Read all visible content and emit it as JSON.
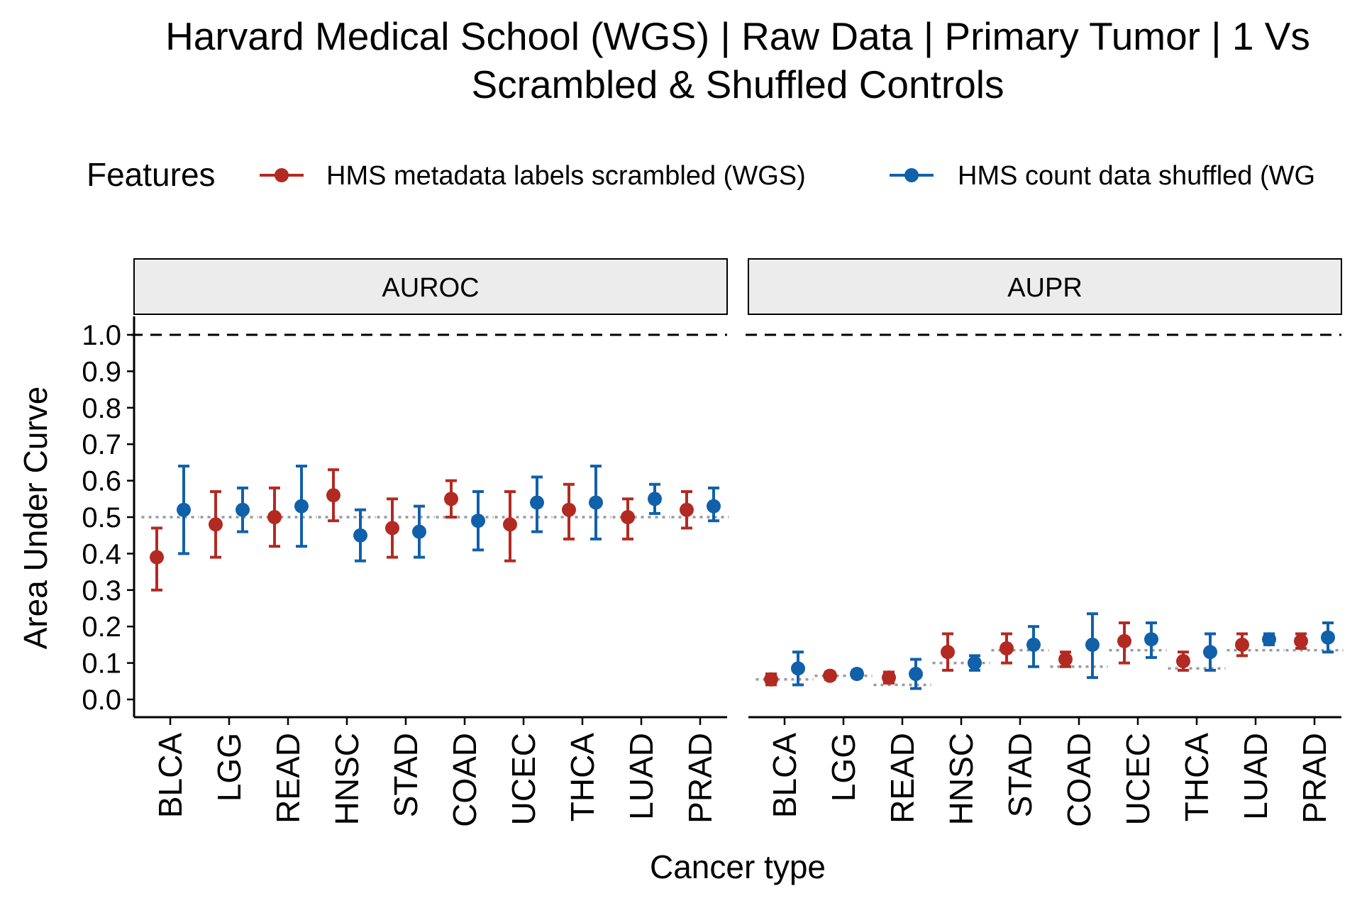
{
  "chart_data": {
    "type": "scatter",
    "title_line1": "Harvard Medical School (WGS) | Raw Data | Primary Tumor | 1 Vs",
    "title_line2": "Scrambled & Shuffled Controls",
    "xlabel": "Cancer type",
    "ylabel": "Area Under Curve",
    "legend": {
      "title": "Features",
      "position": "top",
      "entries": [
        {
          "label": "HMS metadata labels scrambled (WGS)",
          "color": "#b22a22"
        },
        {
          "label": "HMS count data shuffled (WG",
          "color": "#1060aa"
        }
      ]
    },
    "categories": [
      "BLCA",
      "LGG",
      "READ",
      "HNSC",
      "STAD",
      "COAD",
      "UCEC",
      "THCA",
      "LUAD",
      "PRAD"
    ],
    "yticks": [
      "0.0",
      "0.1",
      "0.2",
      "0.3",
      "0.4",
      "0.5",
      "0.6",
      "0.7",
      "0.8",
      "0.9",
      "1.0"
    ],
    "ylim": [
      -0.05,
      1.05
    ],
    "reference_line": 1.0,
    "grid": false,
    "panels": [
      {
        "label": "AUROC",
        "series": [
          {
            "name": "HMS metadata labels scrambled (WGS)",
            "color": "#b22a22",
            "values": [
              0.39,
              0.48,
              0.5,
              0.56,
              0.47,
              0.55,
              0.48,
              0.52,
              0.5,
              0.52
            ],
            "lower": [
              0.3,
              0.39,
              0.42,
              0.49,
              0.39,
              0.5,
              0.38,
              0.44,
              0.44,
              0.47
            ],
            "upper": [
              0.47,
              0.57,
              0.58,
              0.63,
              0.55,
              0.6,
              0.57,
              0.59,
              0.55,
              0.57
            ],
            "baseline": [
              0.5,
              0.5,
              0.5,
              0.5,
              0.5,
              0.5,
              0.5,
              0.5,
              0.5,
              0.5
            ]
          },
          {
            "name": "HMS count data shuffled (WGS)",
            "color": "#1060aa",
            "values": [
              0.52,
              0.52,
              0.53,
              0.45,
              0.46,
              0.49,
              0.54,
              0.54,
              0.55,
              0.53
            ],
            "lower": [
              0.4,
              0.46,
              0.42,
              0.38,
              0.39,
              0.41,
              0.46,
              0.44,
              0.51,
              0.49
            ],
            "upper": [
              0.64,
              0.58,
              0.64,
              0.52,
              0.53,
              0.57,
              0.61,
              0.64,
              0.59,
              0.58
            ],
            "baseline": [
              0.5,
              0.5,
              0.5,
              0.5,
              0.5,
              0.5,
              0.5,
              0.5,
              0.5,
              0.5
            ]
          }
        ]
      },
      {
        "label": "AUPR",
        "series": [
          {
            "name": "HMS metadata labels scrambled (WGS)",
            "color": "#b22a22",
            "values": [
              0.055,
              0.065,
              0.06,
              0.13,
              0.14,
              0.11,
              0.16,
              0.105,
              0.15,
              0.16
            ],
            "lower": [
              0.04,
              0.055,
              0.045,
              0.08,
              0.1,
              0.09,
              0.1,
              0.08,
              0.12,
              0.14
            ],
            "upper": [
              0.07,
              0.075,
              0.075,
              0.18,
              0.18,
              0.13,
              0.21,
              0.13,
              0.18,
              0.18
            ],
            "baseline": [
              0.055,
              0.065,
              0.04,
              0.1,
              0.135,
              0.09,
              0.135,
              0.085,
              0.135,
              0.135
            ]
          },
          {
            "name": "HMS count data shuffled (WGS)",
            "color": "#1060aa",
            "values": [
              0.085,
              0.07,
              0.07,
              0.1,
              0.15,
              0.15,
              0.165,
              0.13,
              0.165,
              0.17
            ],
            "lower": [
              0.04,
              0.06,
              0.03,
              0.08,
              0.09,
              0.06,
              0.115,
              0.08,
              0.15,
              0.13
            ],
            "upper": [
              0.13,
              0.08,
              0.11,
              0.12,
              0.2,
              0.235,
              0.21,
              0.18,
              0.18,
              0.21
            ],
            "baseline": [
              0.055,
              0.065,
              0.04,
              0.1,
              0.135,
              0.09,
              0.135,
              0.085,
              0.135,
              0.135
            ]
          }
        ]
      }
    ]
  }
}
